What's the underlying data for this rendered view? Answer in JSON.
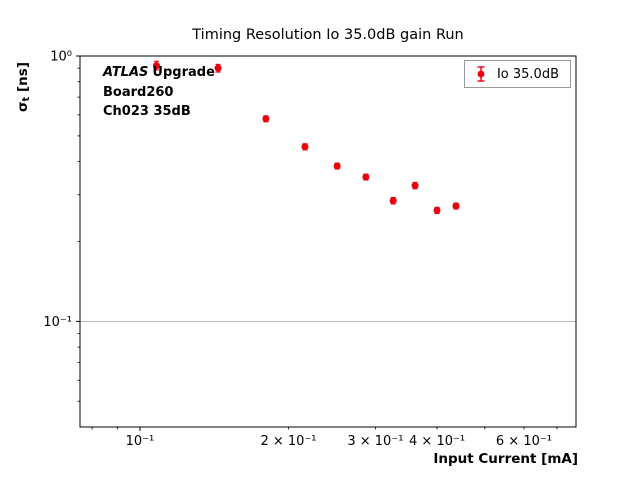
{
  "chart_data": {
    "type": "scatter",
    "title": "Timing Resolution Io 35.0dB gain Run",
    "xlabel": "Input Current [mA]",
    "ylabel": "σt [ns]",
    "ylabel_parts": {
      "sigma": "σ",
      "sub": "t",
      "rest": " [ns]"
    },
    "xscale": "log",
    "yscale": "log",
    "xlim": [
      0.0756,
      0.765
    ],
    "ylim": [
      0.04,
      1.0
    ],
    "grid": "y-major-horizontal",
    "legend": {
      "position": "upper-right",
      "label": "Io 35.0dB",
      "marker": "red-dot-with-errorbar"
    },
    "annotations": {
      "atlas": "ATLAS",
      "line1_rest": "Upgrade",
      "line2": "Board260",
      "line3": "Ch023 35dB"
    },
    "series": [
      {
        "name": "Io 35.0dB",
        "color": "#e8000b",
        "x": [
          0.108,
          0.144,
          0.18,
          0.216,
          0.251,
          0.287,
          0.326,
          0.361,
          0.4,
          0.437
        ],
        "y": [
          0.92,
          0.9,
          0.58,
          0.455,
          0.385,
          0.35,
          0.285,
          0.325,
          0.262,
          0.272
        ],
        "yerr": [
          0.035,
          0.03,
          0.015,
          0.012,
          0.01,
          0.009,
          0.008,
          0.009,
          0.007,
          0.007
        ]
      }
    ],
    "yticks_major": [
      {
        "value": 1.0,
        "label": "10⁰"
      },
      {
        "value": 0.1,
        "label": "10⁻¹"
      }
    ],
    "xticks_major": [
      {
        "value": 0.1,
        "label": "10⁻¹"
      }
    ],
    "xticks_minor_labeled": [
      {
        "value": 0.2,
        "label": "2 × 10⁻¹"
      },
      {
        "value": 0.3,
        "label": "3 × 10⁻¹"
      },
      {
        "value": 0.4,
        "label": "4 × 10⁻¹"
      },
      {
        "value": 0.6,
        "label": "6 × 10⁻¹"
      }
    ],
    "colors": {
      "marker": "#e8000b",
      "grid": "#b0b0b0",
      "spine": "#000000"
    }
  }
}
